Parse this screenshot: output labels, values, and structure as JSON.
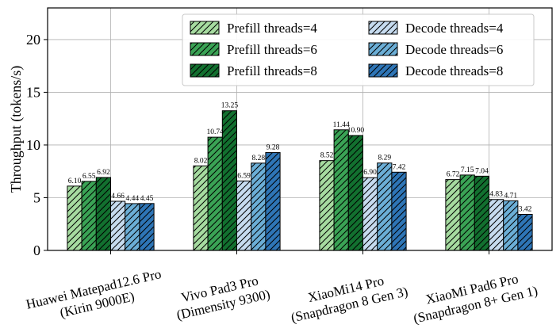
{
  "chart_data": {
    "type": "bar",
    "title": "",
    "xlabel": "",
    "ylabel": "Throughput (tokens/s)",
    "ylim": [
      0,
      23
    ],
    "yticks": [
      0,
      5,
      10,
      15,
      20
    ],
    "grid": true,
    "legend_position": "top-right",
    "categories": [
      [
        "Huawei Matepad12.6 Pro",
        "(Kirin 9000E)"
      ],
      [
        "Vivo Pad3 Pro",
        "(Dimensity 9300)"
      ],
      [
        "XiaoMi14 Pro",
        "(Snapdragon 8 Gen 3)"
      ],
      [
        "XiaoMi Pad6 Pro",
        "(Snapdragon 8+ Gen 1)"
      ]
    ],
    "series": [
      {
        "name": "Prefill threads=4",
        "color": "#a6dba0",
        "values": [
          6.1,
          8.02,
          8.52,
          6.72
        ],
        "labels": [
          "6.10",
          "8.02",
          "8.52",
          "6.72"
        ]
      },
      {
        "name": "Prefill threads=6",
        "color": "#3aa355",
        "values": [
          6.55,
          10.74,
          11.44,
          7.15
        ],
        "labels": [
          "6.55",
          "10.74",
          "11.44",
          "7.15"
        ]
      },
      {
        "name": "Prefill threads=8",
        "color": "#12702f",
        "values": [
          6.92,
          13.25,
          10.9,
          7.04
        ],
        "labels": [
          "6.92",
          "13.25",
          "10.90",
          "7.04"
        ]
      },
      {
        "name": "Decode threads=4",
        "color": "#c6dbef",
        "values": [
          4.66,
          6.59,
          6.9,
          4.83
        ],
        "labels": [
          "4.66",
          "6.59",
          "6.90",
          "4.83"
        ]
      },
      {
        "name": "Decode threads=6",
        "color": "#6baed6",
        "values": [
          4.44,
          8.28,
          8.29,
          4.71
        ],
        "labels": [
          "4.44",
          "8.28",
          "8.29",
          "4.71"
        ]
      },
      {
        "name": "Decode threads=8",
        "color": "#2e75b6",
        "values": [
          4.45,
          9.28,
          7.42,
          3.42
        ],
        "labels": [
          "4.45",
          "9.28",
          "7.42",
          "3.42"
        ]
      }
    ]
  }
}
